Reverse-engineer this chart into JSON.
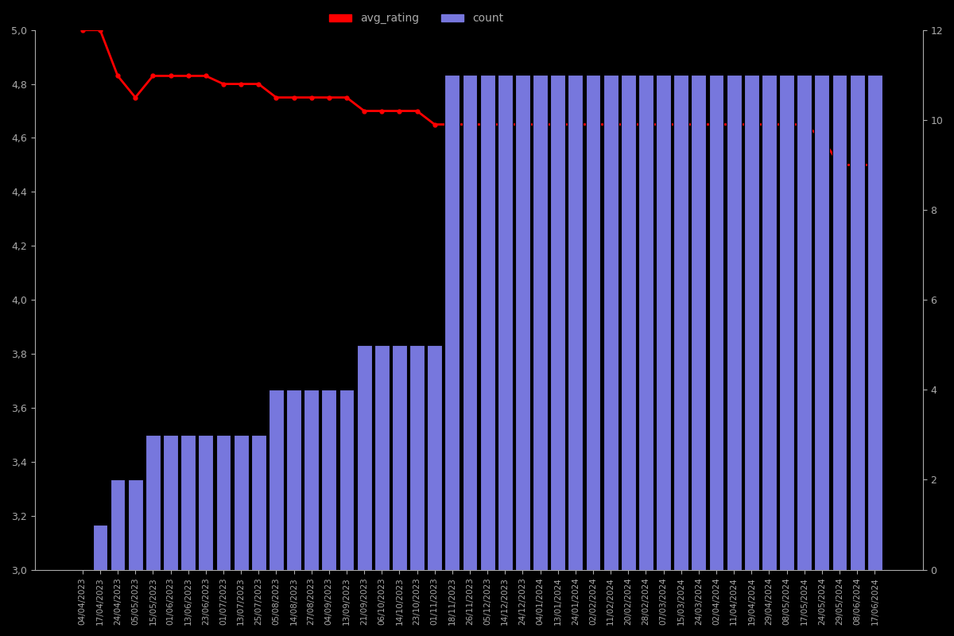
{
  "dates": [
    "04/04/2023",
    "17/04/2023",
    "24/04/2023",
    "05/05/2023",
    "15/05/2023",
    "01/06/2023",
    "13/06/2023",
    "23/06/2023",
    "01/07/2023",
    "13/07/2023",
    "25/07/2023",
    "05/08/2023",
    "14/08/2023",
    "27/08/2023",
    "04/09/2023",
    "13/09/2023",
    "21/09/2023",
    "06/10/2023",
    "14/10/2023",
    "23/10/2023",
    "01/11/2023",
    "18/11/2023",
    "26/11/2023",
    "05/12/2023",
    "14/12/2023",
    "24/12/2023",
    "04/01/2024",
    "13/01/2024",
    "24/01/2024",
    "02/02/2024",
    "11/02/2024",
    "20/02/2024",
    "28/02/2024",
    "07/03/2024",
    "15/03/2024",
    "24/03/2024",
    "02/04/2024",
    "11/04/2024",
    "19/04/2024",
    "29/04/2024",
    "08/05/2024",
    "17/05/2024",
    "24/05/2024",
    "29/05/2024",
    "08/06/2024",
    "17/06/2024"
  ],
  "bar_counts": [
    0,
    1,
    2,
    2,
    3,
    3,
    3,
    3,
    3,
    3,
    3,
    4,
    4,
    4,
    4,
    4,
    5,
    5,
    5,
    5,
    5,
    11,
    11,
    11,
    11,
    11,
    11,
    11,
    11,
    11,
    11,
    11,
    11,
    11,
    11,
    11,
    11,
    11,
    11,
    11,
    11,
    11,
    11,
    11,
    11,
    11
  ],
  "avg_ratings": [
    5.0,
    5.0,
    4.83,
    4.75,
    4.83,
    4.83,
    4.83,
    4.83,
    4.8,
    4.8,
    4.8,
    4.75,
    4.75,
    4.75,
    4.75,
    4.75,
    4.7,
    4.7,
    4.7,
    4.7,
    4.65,
    4.65,
    4.65,
    4.65,
    4.65,
    4.65,
    4.65,
    4.65,
    4.65,
    4.65,
    4.65,
    4.65,
    4.65,
    4.65,
    4.65,
    4.65,
    4.65,
    4.65,
    4.65,
    4.65,
    4.65,
    4.65,
    4.6,
    4.5,
    4.5,
    4.5
  ],
  "bar_color": "#7777dd",
  "bar_edge_color": "#000000",
  "line_color": "#ff0000",
  "background_color": "#000000",
  "text_color": "#aaaaaa",
  "left_ylim": [
    3.0,
    5.0
  ],
  "right_ylim": [
    0,
    12
  ],
  "left_yticks": [
    3.0,
    3.2,
    3.4,
    3.6,
    3.8,
    4.0,
    4.2,
    4.4,
    4.6,
    4.8,
    5.0
  ],
  "right_yticks": [
    0,
    2,
    4,
    6,
    8,
    10,
    12
  ],
  "legend_labels": [
    "avg_rating",
    "count"
  ]
}
